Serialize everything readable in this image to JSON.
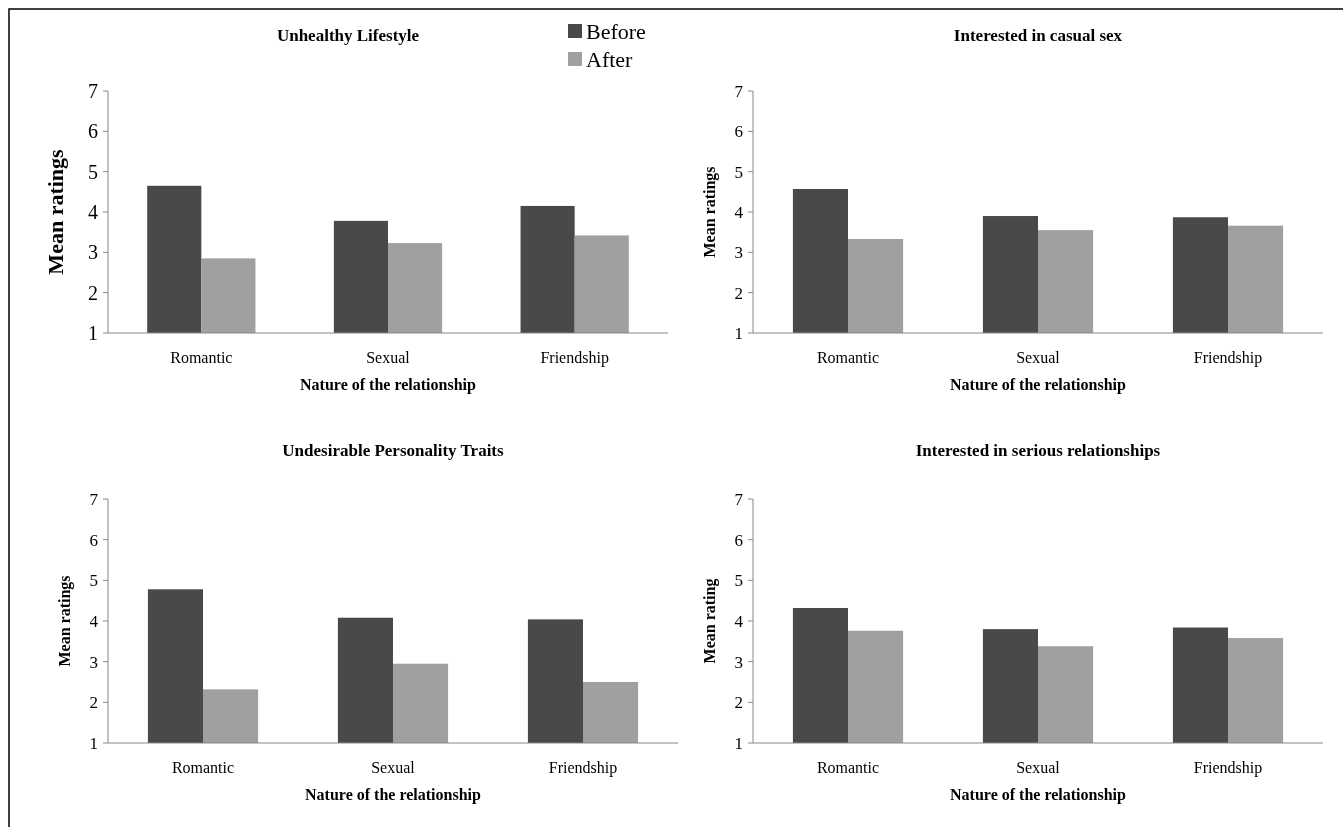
{
  "chart_data": [
    {
      "type": "bar",
      "title": "Unhealthy Lifestyle",
      "xlabel": "Nature of the relationship",
      "ylabel": "Mean ratings",
      "categories": [
        "Romantic",
        "Sexual",
        "Friendship"
      ],
      "ylim": [
        1,
        7
      ],
      "yticks": [
        1,
        2,
        3,
        4,
        5,
        6,
        7
      ],
      "legend": "top right",
      "series": [
        {
          "name": "Before",
          "color": "#494949",
          "values": [
            4.65,
            3.78,
            4.15
          ]
        },
        {
          "name": "After",
          "color": "#a0a0a0",
          "values": [
            2.85,
            3.23,
            3.42
          ]
        }
      ]
    },
    {
      "type": "bar",
      "title": "Interested  in casual sex",
      "xlabel": "Nature of the relationship",
      "ylabel": "Mean ratings",
      "categories": [
        "Romantic",
        "Sexual",
        "Friendship"
      ],
      "ylim": [
        1,
        7
      ],
      "yticks": [
        1,
        2,
        3,
        4,
        5,
        6,
        7
      ],
      "series": [
        {
          "color": "#494949",
          "values": [
            4.57,
            3.9,
            3.87
          ]
        },
        {
          "color": "#a0a0a0",
          "values": [
            3.33,
            3.55,
            3.66
          ]
        }
      ]
    },
    {
      "type": "bar",
      "title": "Undesirable Personality Traits",
      "xlabel": "Nature of the relationship",
      "ylabel": "Mean ratings",
      "categories": [
        "Romantic",
        "Sexual",
        "Friendship"
      ],
      "ylim": [
        1,
        7
      ],
      "yticks": [
        1,
        2,
        3,
        4,
        5,
        6,
        7
      ],
      "series": [
        {
          "color": "#494949",
          "values": [
            4.78,
            4.08,
            4.04
          ]
        },
        {
          "color": "#a0a0a0",
          "values": [
            2.32,
            2.95,
            2.5
          ]
        }
      ]
    },
    {
      "type": "bar",
      "title": "Interested  in serious  relationships",
      "xlabel": "Nature of the relationship",
      "ylabel": "Mean rating",
      "categories": [
        "Romantic",
        "Sexual",
        "Friendship"
      ],
      "ylim": [
        1,
        7
      ],
      "yticks": [
        1,
        2,
        3,
        4,
        5,
        6,
        7
      ],
      "series": [
        {
          "color": "#494949",
          "values": [
            4.32,
            3.8,
            3.84
          ]
        },
        {
          "color": "#a0a0a0",
          "values": [
            3.76,
            3.38,
            3.58
          ]
        }
      ]
    }
  ]
}
